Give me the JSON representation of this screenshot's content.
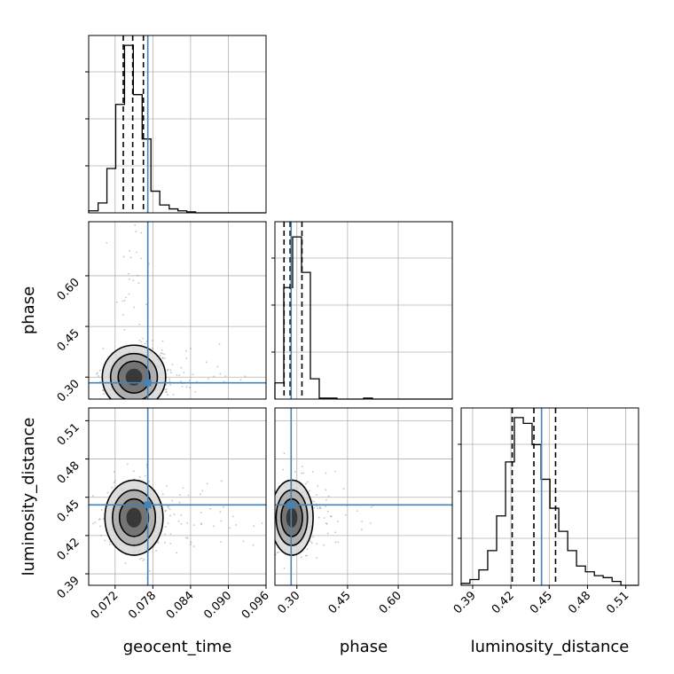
{
  "chart_data": {
    "type": "corner",
    "parameters": [
      "geocent_time",
      "phase",
      "luminosity_distance"
    ],
    "axis_labels": {
      "x": [
        "geocent_time",
        "phase",
        "luminosity_distance"
      ],
      "y_phase": "phase",
      "y_luminosity_distance": "luminosity_distance"
    },
    "ranges": {
      "geocent_time": [
        0.0678,
        0.096
      ],
      "phase": [
        0.235,
        0.76
      ],
      "luminosity_distance": [
        0.381,
        0.52
      ]
    },
    "ticks": {
      "geocent_time": [
        "0.072",
        "0.078",
        "0.084",
        "0.090",
        "0.096"
      ],
      "phase": [
        "0.30",
        "0.45",
        "0.60"
      ],
      "luminosity_distance": [
        "0.39",
        "0.42",
        "0.45",
        "0.48",
        "0.51"
      ]
    },
    "tick_values": {
      "geocent_time": [
        0.072,
        0.078,
        0.084,
        0.09,
        0.096
      ],
      "phase": [
        0.3,
        0.45,
        0.6
      ],
      "luminosity_distance": [
        0.39,
        0.42,
        0.45,
        0.48,
        0.51
      ]
    },
    "truths": {
      "geocent_time": 0.0772,
      "phase": 0.283,
      "luminosity_distance": 0.444
    },
    "quantiles": {
      "geocent_time": [
        0.0733,
        0.0748,
        0.0765
      ],
      "phase": [
        0.262,
        0.28,
        0.315
      ],
      "luminosity_distance": [
        0.421,
        0.438,
        0.455
      ]
    },
    "histograms": {
      "geocent_time": {
        "edges": [
          0.0678,
          0.0693,
          0.0707,
          0.0721,
          0.0735,
          0.0749,
          0.0763,
          0.0777,
          0.0791,
          0.0806,
          0.082,
          0.0834,
          0.0848,
          0.0862,
          0.0876
        ],
        "counts": [
          2,
          10,
          45,
          110,
          170,
          120,
          75,
          22,
          8,
          4,
          2,
          1,
          0,
          0
        ]
      },
      "phase": {
        "edges": [
          0.235,
          0.2612,
          0.2875,
          0.3138,
          0.34,
          0.3662,
          0.3925,
          0.4188,
          0.445,
          0.4712,
          0.4975,
          0.5238,
          0.55
        ],
        "counts": [
          16,
          110,
          160,
          125,
          20,
          1,
          1,
          0,
          0,
          0,
          1,
          0
        ]
      },
      "luminosity_distance": {
        "edges": [
          0.381,
          0.3879,
          0.3949,
          0.4018,
          0.4088,
          0.4158,
          0.4227,
          0.4297,
          0.4366,
          0.4436,
          0.4506,
          0.4575,
          0.4645,
          0.4714,
          0.4784,
          0.4854,
          0.4923,
          0.4993,
          0.5062,
          0.5132
        ],
        "counts": [
          1,
          3,
          8,
          18,
          36,
          64,
          87,
          84,
          73,
          55,
          40,
          28,
          18,
          10,
          7,
          5,
          4,
          2,
          0
        ]
      }
    },
    "contour_peaks": {
      "geocent_time_phase": [
        0.075,
        0.3
      ],
      "geocent_time_luminosity_distance": [
        0.075,
        0.434
      ],
      "phase_luminosity_distance": [
        0.285,
        0.434
      ]
    },
    "grid": true,
    "colors": {
      "truth": "#4682b4",
      "hist": "#000000",
      "points": "#555555"
    }
  }
}
